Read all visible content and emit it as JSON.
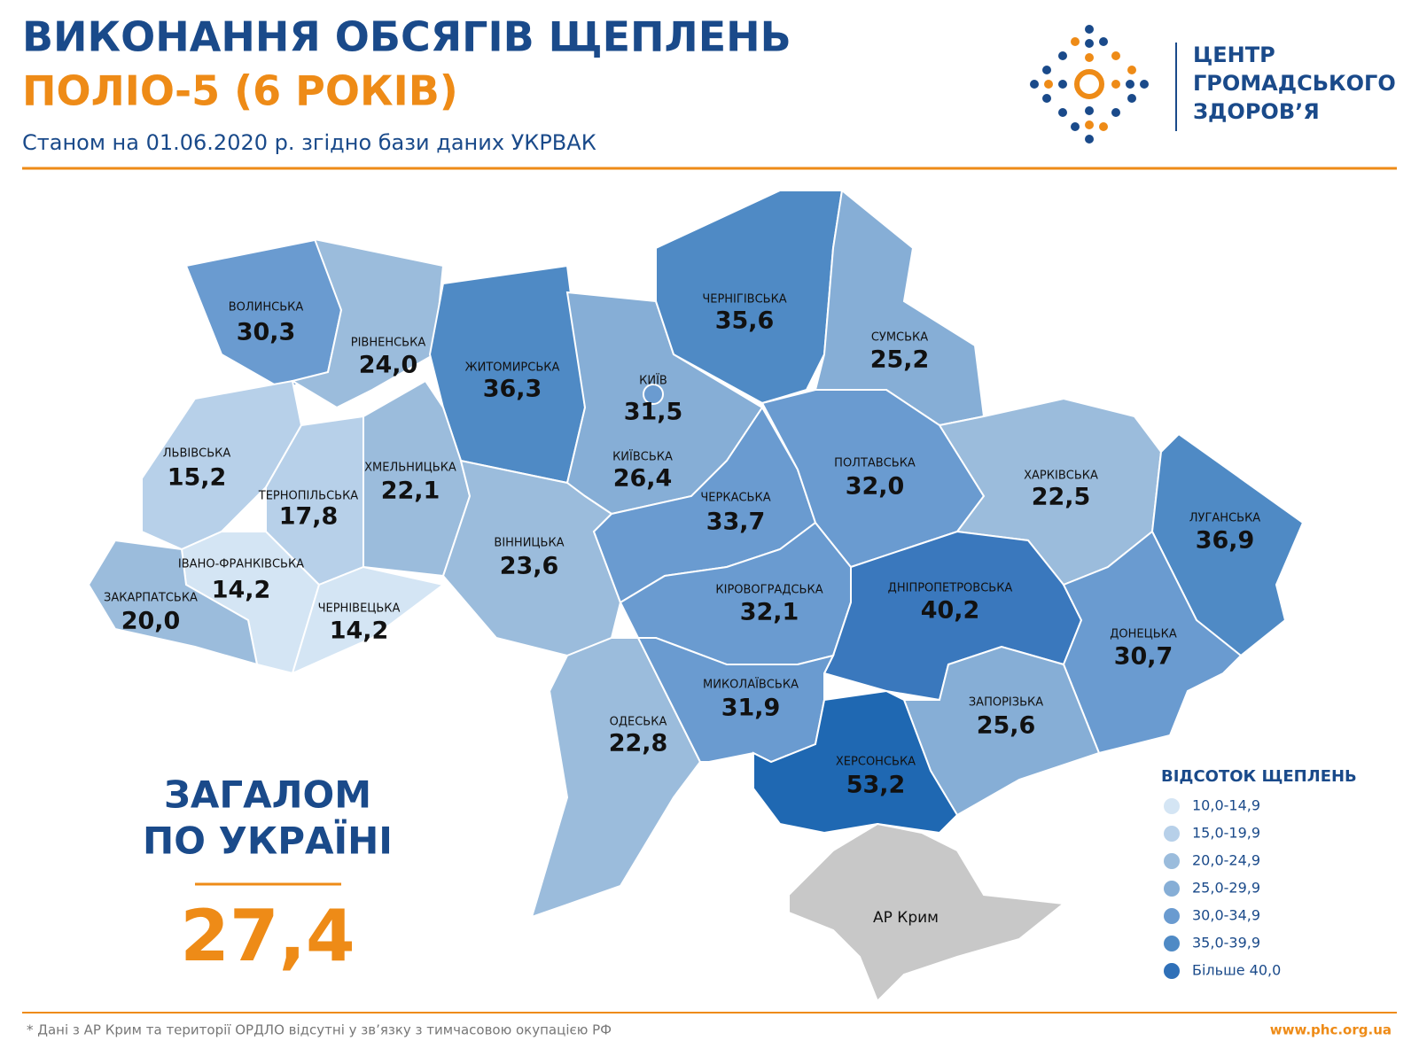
{
  "header": {
    "title_line1": "ВИКОНАННЯ ОБСЯГІВ ЩЕПЛЕНЬ",
    "title_line2": "ПОЛІО-5 (6 РОКІВ)",
    "subtitle": "Станом на 01.06.2020 р. згідно бази даних УКРВАК"
  },
  "logo": {
    "lines": [
      "ЦЕНТР",
      "ГРОМАДСЬКОГО",
      "ЗДОРОВ’Я"
    ]
  },
  "regions": [
    {
      "name": "ВОЛИНСЬКА",
      "value": "30,3",
      "color": "#6a9bd0"
    },
    {
      "name": "РІВНЕНСЬКА",
      "value": "24,0",
      "color": "#9bbcdc"
    },
    {
      "name": "ЖИТОМИРСЬКА",
      "value": "36,3",
      "color": "#4f8ac5"
    },
    {
      "name": "КИЇВСЬКА",
      "value": "26,4",
      "color": "#86aed6"
    },
    {
      "name": "ЧЕРНІГІВСЬКА",
      "value": "35,6",
      "color": "#4f8ac5"
    },
    {
      "name": "СУМСЬКА",
      "value": "25,2",
      "color": "#86aed6"
    },
    {
      "name": "ЛЬВІВСЬКА",
      "value": "15,2",
      "color": "#b7d0e9"
    },
    {
      "name": "ТЕРНОПІЛЬСЬКА",
      "value": "17,8",
      "color": "#b7d0e9"
    },
    {
      "name": "ХМЕЛЬНИЦЬКА",
      "value": "22,1",
      "color": "#9bbcdc"
    },
    {
      "name": "ІВАНО-ФРАНКІВСЬКА",
      "value": "14,2",
      "color": "#d4e5f4"
    },
    {
      "name": "ЗАКАРПАТСЬКА",
      "value": "20,0",
      "color": "#9bbcdc"
    },
    {
      "name": "ЧЕРНІВЕЦЬКА",
      "value": "14,2",
      "color": "#d4e5f4"
    },
    {
      "name": "ВІННИЦЬКА",
      "value": "23,6",
      "color": "#9bbcdc"
    },
    {
      "name": "ОДЕСЬКА",
      "value": "22,8",
      "color": "#9bbcdc"
    },
    {
      "name": "ЧЕРКАСЬКА",
      "value": "33,7",
      "color": "#6a9bd0"
    },
    {
      "name": "КІРОВОГРАДСЬКА",
      "value": "32,1",
      "color": "#6a9bd0"
    },
    {
      "name": "ПОЛТАВСЬКА",
      "value": "32,0",
      "color": "#6a9bd0"
    },
    {
      "name": "ХАРКІВСЬКА",
      "value": "22,5",
      "color": "#9bbcdc"
    },
    {
      "name": "ЛУГАНСЬКА",
      "value": "36,9",
      "color": "#4f8ac5"
    },
    {
      "name": "ДНІПРОПЕТРОВСЬКА",
      "value": "40,2",
      "color": "#3a78bd"
    },
    {
      "name": "ДОНЕЦЬКА",
      "value": "30,7",
      "color": "#6a9bd0"
    },
    {
      "name": "ЗАПОРІЗЬКА",
      "value": "25,6",
      "color": "#86aed6"
    },
    {
      "name": "МИКОЛАЇВСЬКА",
      "value": "31,9",
      "color": "#6a9bd0"
    },
    {
      "name": "ХЕРСОНСЬКА",
      "value": "53,2",
      "color": "#1f68b2"
    }
  ],
  "kyiv_city": {
    "name": "КИЇВ",
    "value": "31,5"
  },
  "crimea": {
    "name": "АР Крим",
    "color": "#c8c8c8"
  },
  "total": {
    "label_lines": [
      "ЗАГАЛОМ",
      "ПО УКРАЇНІ"
    ],
    "value": "27,4"
  },
  "legend": {
    "title": "ВІДСОТОК ЩЕПЛЕНЬ",
    "items": [
      {
        "label": "10,0-14,9",
        "color": "#d4e5f4"
      },
      {
        "label": "15,0-19,9",
        "color": "#b7d0e9"
      },
      {
        "label": "20,0-24,9",
        "color": "#9bbcdc"
      },
      {
        "label": "25,0-29,9",
        "color": "#86aed6"
      },
      {
        "label": "30,0-34,9",
        "color": "#6a9bd0"
      },
      {
        "label": "35,0-39,9",
        "color": "#4f8ac5"
      },
      {
        "label": "Більше 40,0",
        "color": "#2f70b8"
      }
    ]
  },
  "footer": {
    "note": "* Дані з АР Крим та території ОРДЛО відсутні у зв’язку з тимчасовою окупацією РФ",
    "url": "www.phc.org.ua"
  }
}
